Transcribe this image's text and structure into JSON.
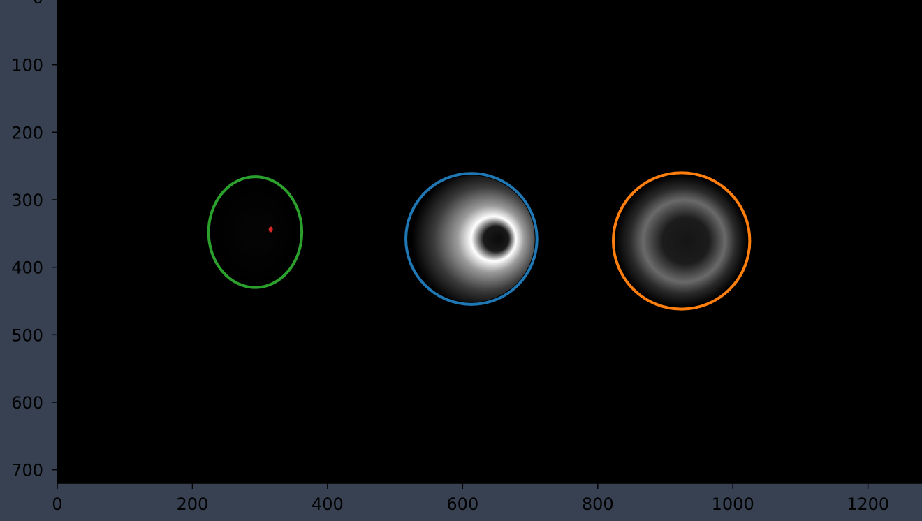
{
  "chart_data": {
    "type": "heatmap",
    "title": "",
    "xlabel": "",
    "ylabel": "",
    "xlim": [
      0,
      1280
    ],
    "ylim": [
      720,
      0
    ],
    "grid": false,
    "background": "#000000",
    "figure_background": "#374151",
    "x_ticks": [
      "0",
      "200",
      "400",
      "600",
      "800",
      "1000",
      "1200"
    ],
    "y_ticks": [
      "0",
      "100",
      "200",
      "300",
      "400",
      "500",
      "600",
      "700"
    ],
    "y_tick_values": [
      0,
      100,
      200,
      300,
      400,
      500,
      600,
      700
    ],
    "x_tick_values": [
      0,
      200,
      400,
      600,
      800,
      1000,
      1200
    ],
    "objects": [
      {
        "kind": "ellipse",
        "cx": 293,
        "cy": 348,
        "rx": 69,
        "ry": 82,
        "stroke": "#2ca02c",
        "brightness": "dark",
        "marker": {
          "x": 316,
          "y": 344,
          "color": "#d62728"
        }
      },
      {
        "kind": "circle",
        "cx": 613,
        "cy": 358,
        "r": 97,
        "stroke": "#1f77b4",
        "brightness": "bright-crescent"
      },
      {
        "kind": "circle",
        "cx": 924,
        "cy": 361,
        "r": 101,
        "stroke": "#ff7f0e",
        "brightness": "dim-ring"
      }
    ]
  }
}
